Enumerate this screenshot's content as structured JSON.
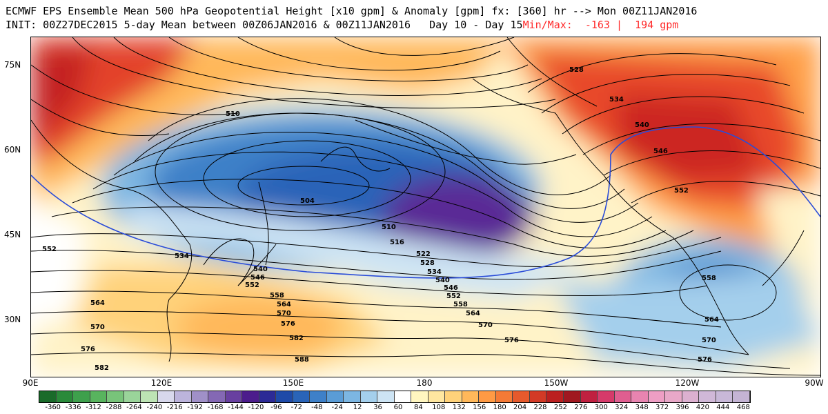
{
  "title_line1": "ECMWF EPS Ensemble Mean 500 hPa Geopotential Height [x10 gpm] & Anomaly [gpm] fx: [360] hr --> Mon 00Z11JAN2016",
  "title_line2": "INIT: 00Z27DEC2015 5-day Mean between 00Z06JAN2016 & 00Z11JAN2016   Day 10 - Day 15",
  "minmax": "Min/Max:  -163 |  194 gpm",
  "lat_labels": [
    "75N",
    "60N",
    "45N",
    "30N"
  ],
  "lon_labels": [
    "90E",
    "120E",
    "150E",
    "180",
    "150W",
    "120W",
    "90W"
  ],
  "contour_labels": {
    "c504": "504",
    "c510a": "510",
    "c510b": "510",
    "c516": "516",
    "c522": "522",
    "c528a": "528",
    "c528b": "528",
    "c534a": "534",
    "c534b": "534",
    "c534c": "534",
    "c540a": "540",
    "c540b": "540",
    "c540c": "540",
    "c546a": "546",
    "c546b": "546",
    "c546c": "546",
    "c552a": "552",
    "c552b": "552",
    "c552c": "552",
    "c552d": "552",
    "c558a": "558",
    "c558b": "558",
    "c558c": "558",
    "c564a": "564",
    "c564b": "564",
    "c564c": "564",
    "c564d": "564",
    "c570a": "570",
    "c570b": "570",
    "c570c": "570",
    "c570d": "570",
    "c576a": "576",
    "c576b": "576",
    "c576c": "576",
    "c576d": "576",
    "c582a": "582",
    "c582b": "582",
    "c588": "588"
  },
  "colorbar": {
    "ticks": [
      "-360",
      "-336",
      "-312",
      "-288",
      "-264",
      "-240",
      "-216",
      "-192",
      "-168",
      "-144",
      "-120",
      "-96",
      "-72",
      "-48",
      "-24",
      "12",
      "36",
      "60",
      "84",
      "108",
      "132",
      "156",
      "180",
      "204",
      "228",
      "252",
      "276",
      "300",
      "324",
      "348",
      "372",
      "396",
      "420",
      "444",
      "468"
    ],
    "colors": [
      "#1a6b2a",
      "#2a8a3a",
      "#3ea04c",
      "#58b45e",
      "#78c47a",
      "#9ad49a",
      "#bde4b4",
      "#d8d8ec",
      "#bcb4dc",
      "#a090c8",
      "#8468b4",
      "#6840a0",
      "#4c1c8c",
      "#2c2a96",
      "#1e4aa8",
      "#2a64b8",
      "#3e80c8",
      "#5a9cd6",
      "#7cb6e2",
      "#a4cfec",
      "#cde4f4",
      "#ffffff",
      "#fff6c0",
      "#ffe7a0",
      "#ffd27a",
      "#ffb85a",
      "#ff9a44",
      "#f57a36",
      "#e65a2c",
      "#d33a26",
      "#bb2020",
      "#a01820",
      "#c02040",
      "#d63a6a",
      "#e05e90",
      "#e884b0",
      "#ee9ec4",
      "#e8a8c8",
      "#dcb0d0",
      "#d0b8d8",
      "#c8b8d8",
      "#c4b4d4"
    ]
  }
}
